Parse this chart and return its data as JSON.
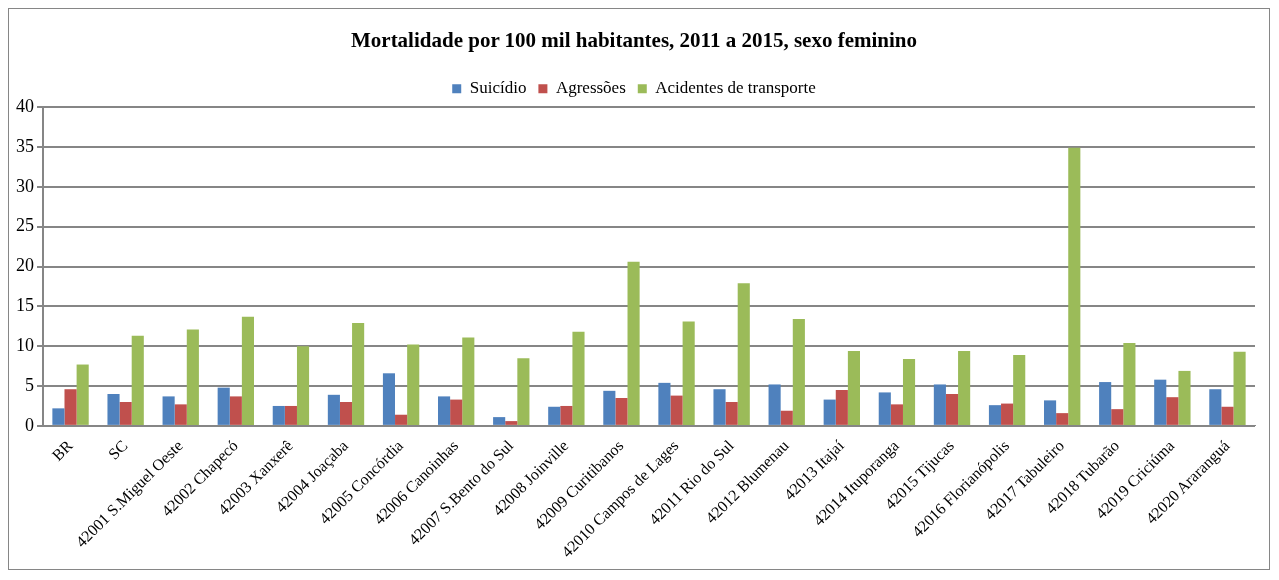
{
  "chart_data": {
    "type": "bar",
    "title": "Mortalidade por 100 mil habitantes, 2011 a 2015, sexo feminino",
    "categories": [
      "BR",
      "SC",
      "42001 S.Miguel Oeste",
      "42002 Chapecó",
      "42003 Xanxerê",
      "42004 Joaçaba",
      "42005 Concórdia",
      "42006 Canoinhas",
      "42007 S.Bento do Sul",
      "42008 Joinville",
      "42009 Curitibanos",
      "42010 Campos de Lages",
      "42011 Rio do Sul",
      "42012 Blumenau",
      "42013 Itajaí",
      "42014 Ituporanga",
      "42015 Tijucas",
      "42016 Florianópolis",
      "42017 Tabuleiro",
      "42018 Tubarão",
      "42019 Criciúma",
      "42020 Araranguá"
    ],
    "series": [
      {
        "name": "Suicídio",
        "color": "#4f81bd",
        "values": [
          2.2,
          4.0,
          3.7,
          4.8,
          2.5,
          3.9,
          6.6,
          3.7,
          1.1,
          2.4,
          4.4,
          5.4,
          4.6,
          5.2,
          3.3,
          4.2,
          5.2,
          2.6,
          3.2,
          5.5,
          5.8,
          4.6
        ]
      },
      {
        "name": "Agressões",
        "color": "#c0504d",
        "values": [
          4.6,
          3.0,
          2.7,
          3.7,
          2.5,
          3.0,
          1.4,
          3.3,
          0.6,
          2.5,
          3.5,
          3.8,
          3.0,
          1.9,
          4.5,
          2.7,
          4.0,
          2.8,
          1.6,
          2.1,
          3.6,
          2.4
        ]
      },
      {
        "name": "Acidentes de transporte",
        "color": "#9bbb59",
        "values": [
          7.7,
          11.3,
          12.1,
          13.7,
          10.0,
          12.9,
          10.2,
          11.1,
          8.5,
          11.8,
          20.6,
          13.1,
          17.9,
          13.4,
          9.4,
          8.4,
          9.4,
          8.9,
          34.9,
          10.4,
          6.9,
          9.3
        ]
      }
    ],
    "ylim": [
      0,
      40
    ],
    "yticks": [
      0,
      5,
      10,
      15,
      20,
      25,
      30,
      35,
      40
    ],
    "grid": "y",
    "legend": "top"
  }
}
